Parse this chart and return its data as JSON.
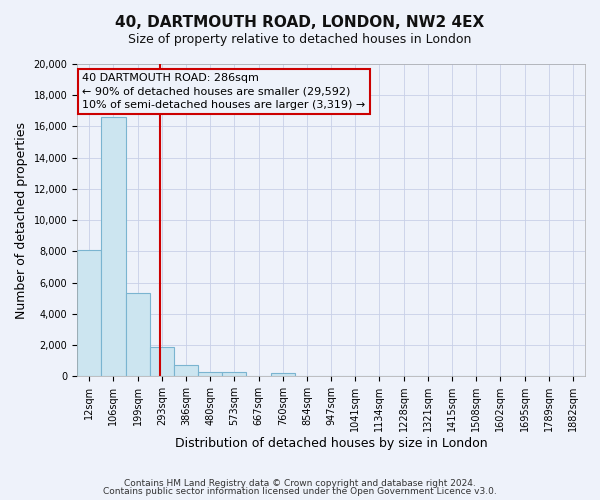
{
  "title": "40, DARTMOUTH ROAD, LONDON, NW2 4EX",
  "subtitle": "Size of property relative to detached houses in London",
  "xlabel": "Distribution of detached houses by size in London",
  "ylabel": "Number of detached properties",
  "bar_labels": [
    "12sqm",
    "106sqm",
    "199sqm",
    "293sqm",
    "386sqm",
    "480sqm",
    "573sqm",
    "667sqm",
    "760sqm",
    "854sqm",
    "947sqm",
    "1041sqm",
    "1134sqm",
    "1228sqm",
    "1321sqm",
    "1415sqm",
    "1508sqm",
    "1602sqm",
    "1695sqm",
    "1789sqm",
    "1882sqm"
  ],
  "bar_heights": [
    8100,
    16600,
    5300,
    1850,
    750,
    300,
    250,
    0,
    200,
    0,
    0,
    0,
    0,
    0,
    0,
    0,
    0,
    0,
    0,
    0,
    0
  ],
  "bar_color": "#cce5f0",
  "bar_edge_color": "#7ab4d0",
  "vline_color": "#cc0000",
  "ylim": [
    0,
    20000
  ],
  "yticks": [
    0,
    2000,
    4000,
    6000,
    8000,
    10000,
    12000,
    14000,
    16000,
    18000,
    20000
  ],
  "annotation_title": "40 DARTMOUTH ROAD: 286sqm",
  "annotation_line1": "← 90% of detached houses are smaller (29,592)",
  "annotation_line2": "10% of semi-detached houses are larger (3,319) →",
  "annotation_box_color": "#cc0000",
  "footer_line1": "Contains HM Land Registry data © Crown copyright and database right 2024.",
  "footer_line2": "Contains public sector information licensed under the Open Government Licence v3.0.",
  "background_color": "#eef2fa",
  "grid_color": "#c8d0e8",
  "title_fontsize": 11,
  "subtitle_fontsize": 9,
  "xlabel_fontsize": 9,
  "ylabel_fontsize": 9,
  "tick_fontsize": 7,
  "footer_fontsize": 6.5
}
